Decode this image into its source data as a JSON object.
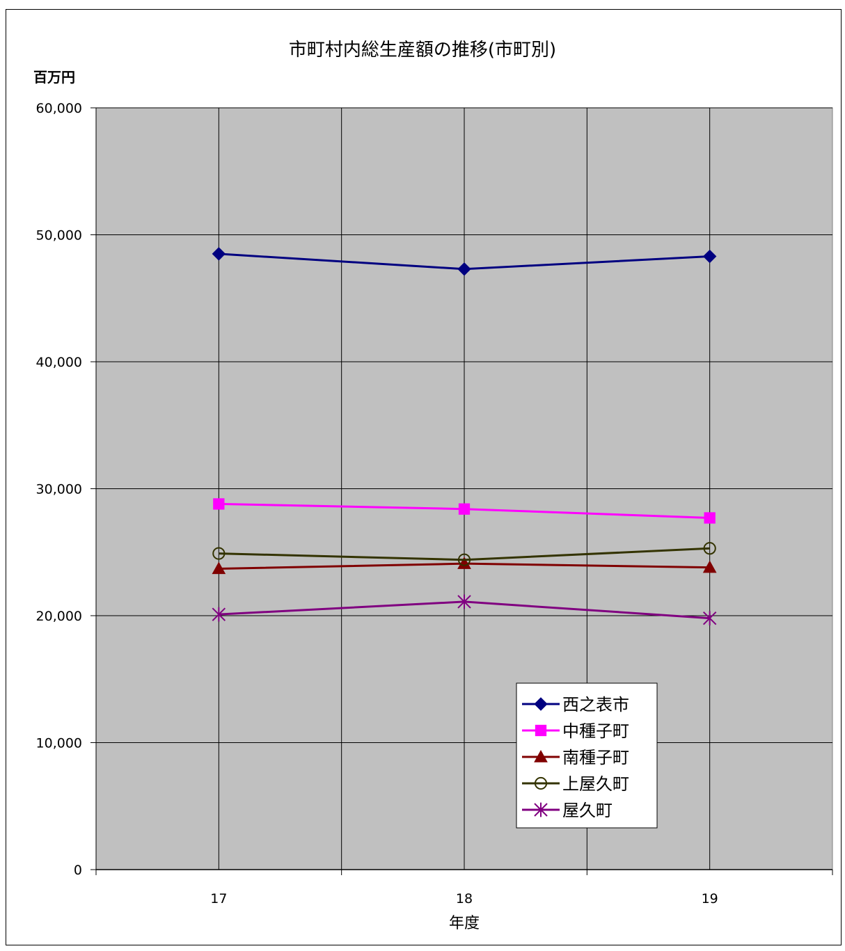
{
  "chart_data": {
    "type": "line",
    "title": "市町村内総生産額の推移(市町別)",
    "ylabel": "百万円",
    "xlabel": "年度",
    "categories": [
      "17",
      "18",
      "19"
    ],
    "ylim": [
      0,
      60000
    ],
    "yticks": [
      0,
      10000,
      20000,
      30000,
      40000,
      50000,
      60000
    ],
    "ytick_labels": [
      "0",
      "10,000",
      "20,000",
      "30,000",
      "40,000",
      "50,000",
      "60,000"
    ],
    "grid": true,
    "plot_background": "#C0C0C0",
    "legend_position": "bottom-right",
    "series": [
      {
        "name": "西之表市",
        "values": [
          48500,
          47300,
          48300
        ],
        "color": "#000080",
        "marker": "diamond"
      },
      {
        "name": "中種子町",
        "values": [
          28800,
          28400,
          27700
        ],
        "color": "#FF00FF",
        "marker": "square"
      },
      {
        "name": "南種子町",
        "values": [
          23700,
          24100,
          23800
        ],
        "color": "#800000",
        "marker": "triangle"
      },
      {
        "name": "上屋久町",
        "values": [
          24900,
          24400,
          25300
        ],
        "color": "#333300",
        "marker": "circle-open"
      },
      {
        "name": "屋久町",
        "values": [
          20100,
          21100,
          19800
        ],
        "color": "#800080",
        "marker": "star"
      }
    ]
  }
}
